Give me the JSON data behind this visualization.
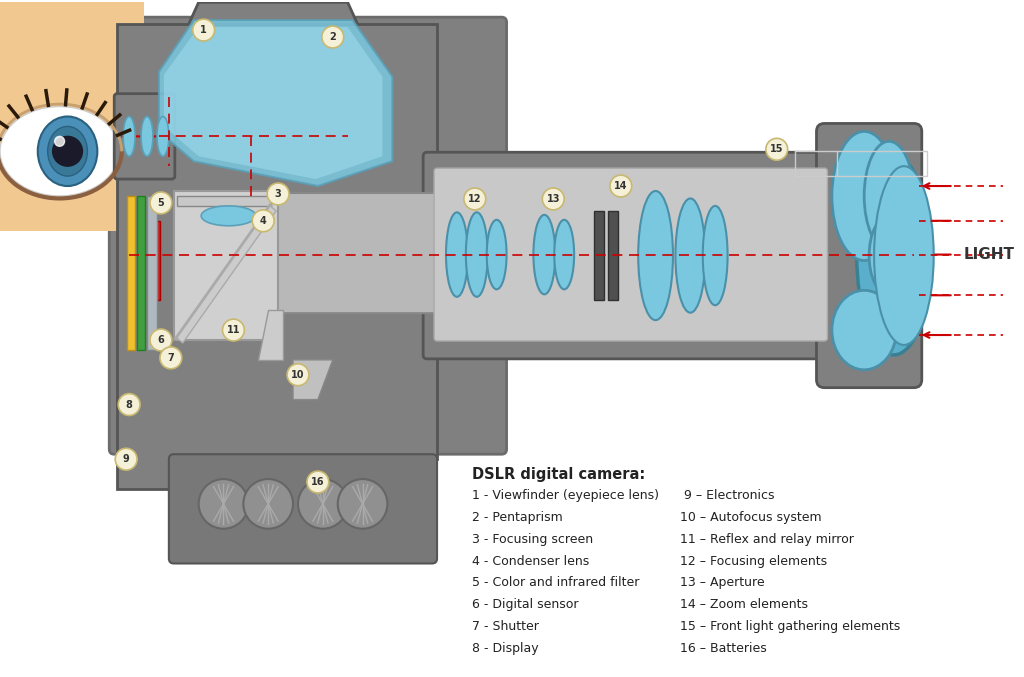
{
  "title": "DSLR digital camera:",
  "background_color": "#ffffff",
  "camera_body_color": "#808080",
  "camera_body_dark": "#6b6b6b",
  "camera_body_light": "#a0a0a0",
  "lens_color": "#6bb8d4",
  "lens_dark": "#4a90a8",
  "lens_light": "#9fd8ee",
  "silver_color": "#c0c0c0",
  "light_path_color": "#cc0000",
  "label_bg": "#f5f0d8",
  "label_border": "#c8b870",
  "legend_left": [
    "1 - Viewfinder (eyepiece lens)",
    "2 - Pentaprism",
    "3 - Focusing screen",
    "4 - Condenser lens",
    "5 - Color and infrared filter",
    "6 - Digital sensor",
    "7 - Shutter",
    "8 - Display"
  ],
  "legend_right": [
    " 9 – Electronics",
    "10 – Autofocus system",
    "11 – Reflex and relay mirror",
    "12 – Focusing elements",
    "13 – Aperture",
    "14 – Zoom elements",
    "15 – Front light gathering elements",
    "16 – Batteries"
  ]
}
